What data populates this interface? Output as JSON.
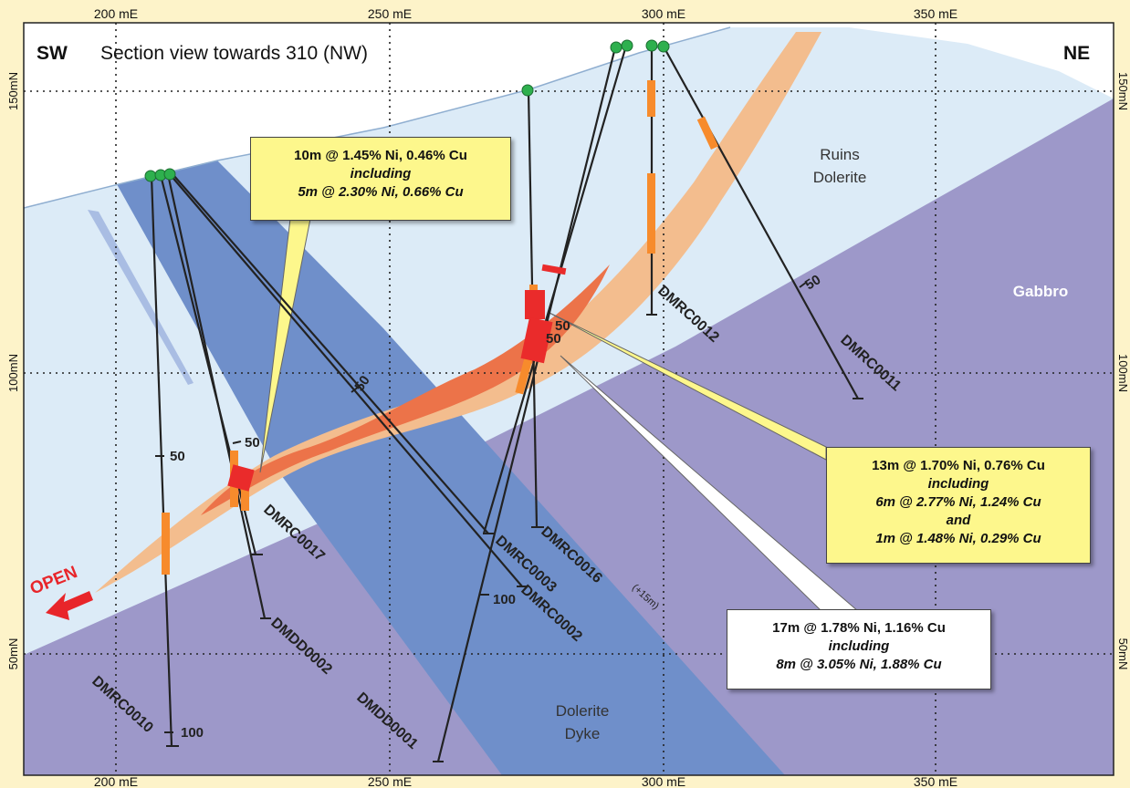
{
  "header": {
    "left_label": "SW",
    "title": "Section view towards 310 (NW)",
    "right_label": "NE"
  },
  "axes": {
    "easting_ticks": [
      "200 mE",
      "250 mE",
      "300 mE",
      "350 mE"
    ],
    "northing_ticks": [
      "150mN",
      "100mN",
      "50mN"
    ]
  },
  "units": {
    "ruins_dolerite": [
      "Ruins",
      "Dolerite"
    ],
    "gabbro": "Gabbro",
    "dolerite_dyke": [
      "Dolerite",
      "Dyke"
    ]
  },
  "open_label": "OPEN",
  "drillholes": [
    {
      "name": "DMRC0010",
      "depth_labels": [
        "50",
        "100"
      ]
    },
    {
      "name": "DMRC0017",
      "depth_labels": [
        "50"
      ]
    },
    {
      "name": "DMDD0002",
      "depth_labels": []
    },
    {
      "name": "DMRC0003",
      "depth_labels": [
        "50"
      ]
    },
    {
      "name": "DMRC0002",
      "depth_labels": []
    },
    {
      "name": "DMDD0001",
      "depth_labels": [
        "100"
      ]
    },
    {
      "name": "DMRC0016",
      "suffix": "(+15m)",
      "depth_labels": [
        "50"
      ]
    },
    {
      "name": "DMRC0012",
      "depth_labels": [
        "50"
      ]
    },
    {
      "name": "DMRC0011",
      "depth_labels": [
        "50"
      ]
    }
  ],
  "callouts": [
    {
      "id": "left",
      "lines": [
        "10m @ 1.45% Ni, 0.46% Cu",
        "including",
        "5m @ 2.30% Ni, 0.66% Cu"
      ],
      "style": "yellow"
    },
    {
      "id": "right",
      "lines": [
        "13m @ 1.70% Ni, 0.76% Cu",
        "including",
        "6m @ 2.77% Ni, 1.24% Cu",
        "and",
        "1m @ 1.48% Ni, 0.29% Cu"
      ],
      "style": "yellow"
    },
    {
      "id": "lower",
      "lines": [
        "17m @ 1.78% Ni, 1.16% Cu",
        "including",
        "8m @ 3.05% Ni, 1.88% Cu"
      ],
      "style": "white"
    }
  ],
  "colors": {
    "background": "#fdf3c9",
    "ruins_dolerite": "#dcebf7",
    "gabbro": "#9d98c9",
    "dolerite_dyke": "#6f8fca",
    "mineralized_halo": "#f3bd8e",
    "mineralized_core": "#ec7349",
    "high_grade": "#ea2b2b",
    "intercept": "#f78b2c",
    "collar": "#2eb04e",
    "open_arrow": "#e8252a"
  }
}
